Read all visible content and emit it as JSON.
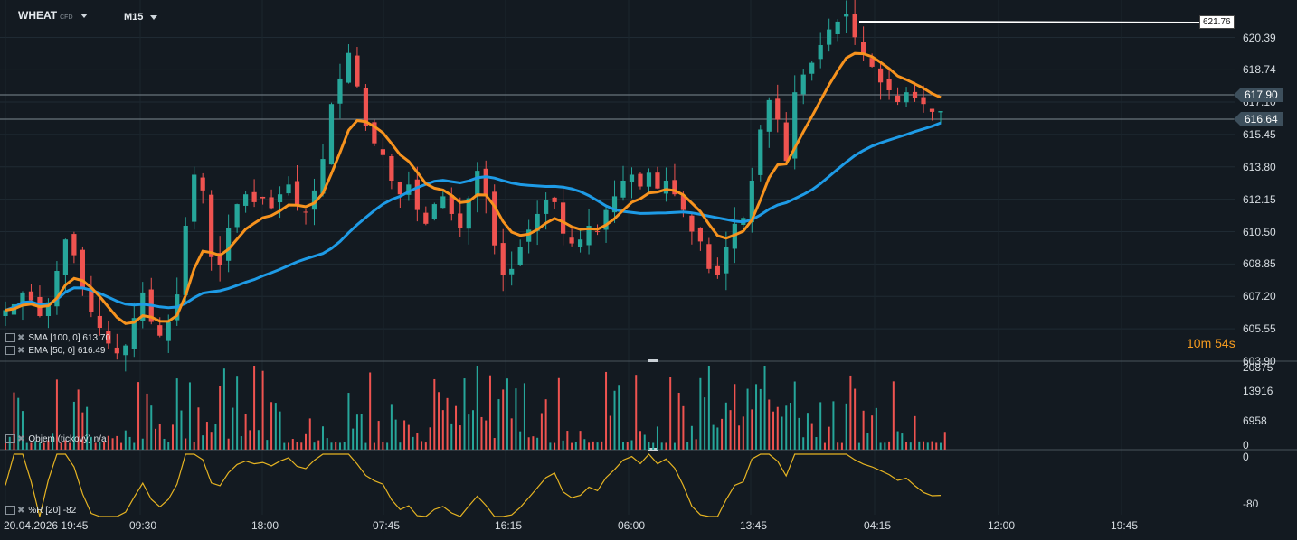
{
  "header": {
    "symbol": "WHEAT",
    "symbol_tag": "CFD",
    "timeframe": "M15"
  },
  "colors": {
    "bull": "#26a69a",
    "bear": "#ef5350",
    "ema": "#f7931e",
    "sma": "#1e9be6",
    "wr": "#e6b422",
    "bg": "#131a21"
  },
  "timer": {
    "min": "10m",
    "sec": "54s"
  },
  "price_tags": {
    "high": "621.76",
    "line1": "617.90",
    "current": "616.64"
  },
  "indicators": {
    "sma": "SMA [100, 0] 613.70",
    "ema": "EMA [50, 0] 616.49",
    "volume": "Objem (tickový) n/a",
    "wr": "%R [20] -82"
  },
  "chart_data": [
    {
      "type": "candlestick",
      "title": "WHEAT M15",
      "price_axis": [
        "620.39",
        "618.74",
        "617.10",
        "615.45",
        "613.80",
        "612.15",
        "610.50",
        "608.85",
        "607.20",
        "605.55",
        "603.90"
      ],
      "x_ticks": [
        "20.04.2026 19:45",
        "09:30",
        "18:00",
        "07:45",
        "16:15",
        "06:00",
        "13:45",
        "04:15",
        "12:00",
        "19:45"
      ],
      "ylim": [
        603.9,
        622.3
      ],
      "approx_close": [
        606.5,
        606.8,
        607.4,
        607.0,
        606.2,
        606.9,
        608.5,
        610.1,
        609.3,
        607.6,
        606.4,
        605.6,
        604.8,
        604.3,
        604.7,
        606.1,
        607.4,
        605.9,
        605.2,
        605.9,
        607.3,
        610.8,
        613.4,
        612.6,
        609.2,
        608.8,
        610.7,
        611.9,
        612.4,
        612.0,
        612.2,
        611.7,
        612.4,
        612.9,
        611.8,
        611.5,
        612.6,
        614.2,
        617.0,
        618.3,
        619.6,
        617.9,
        615.9,
        615.0,
        614.4,
        613.1,
        612.4,
        612.9,
        611.6,
        610.9,
        611.9,
        612.3,
        611.4,
        610.7,
        612.2,
        613.6,
        612.3,
        609.8,
        608.3,
        608.6,
        609.7,
        610.6,
        611.4,
        612.1,
        612.0,
        610.4,
        609.9,
        610.1,
        610.8,
        610.5,
        611.6,
        612.3,
        613.1,
        613.4,
        612.8,
        613.5,
        612.7,
        613.1,
        612.4,
        611.6,
        610.5,
        610.0,
        608.6,
        608.3,
        609.7,
        610.9,
        611.2,
        613.1,
        615.7,
        617.2,
        616.2,
        614.1,
        617.6,
        618.5,
        619.1,
        620.0,
        620.8,
        621.2,
        621.6,
        620.4,
        619.5,
        618.9,
        618.1,
        617.7,
        617.1,
        617.6,
        617.3,
        617.0,
        616.6,
        616.64
      ],
      "sma_label": "SMA [100, 0]",
      "sma_last": 613.7,
      "ema_label": "EMA [50, 0]",
      "ema_last": 616.49
    },
    {
      "type": "bar",
      "title": "Objem (tickový)",
      "axis": [
        "20875",
        "13916",
        "6958",
        "0"
      ],
      "ylim": [
        0,
        20875
      ]
    },
    {
      "type": "line",
      "title": "%R [20]",
      "axis": [
        "0",
        "-80"
      ],
      "last": -82,
      "ylim": [
        -100,
        0
      ]
    }
  ]
}
